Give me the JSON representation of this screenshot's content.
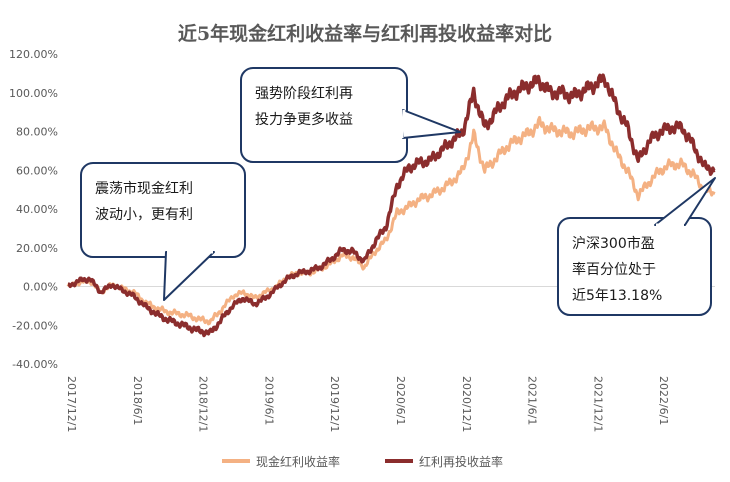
{
  "chart_data": {
    "type": "line",
    "title": "近5年现金红利收益率与红利再投收益率对比",
    "xlabel": "",
    "ylabel": "",
    "ylim": [
      -40,
      120
    ],
    "y_ticks": [
      "120.00%",
      "100.00%",
      "80.00%",
      "60.00%",
      "40.00%",
      "20.00%",
      "0.00%",
      "-20.00%",
      "-40.00%"
    ],
    "x_ticks": [
      "2017/12/1",
      "2018/6/1",
      "2018/12/1",
      "2019/6/1",
      "2019/12/1",
      "2020/6/1",
      "2020/12/1",
      "2021/6/1",
      "2021/12/1",
      "2022/6/1"
    ],
    "grid": false,
    "legend_position": "bottom",
    "x_dates": [
      "2017/12/1",
      "2018/1/1",
      "2018/2/1",
      "2018/3/1",
      "2018/4/1",
      "2018/5/1",
      "2018/6/1",
      "2018/7/1",
      "2018/8/1",
      "2018/9/1",
      "2018/10/1",
      "2018/11/1",
      "2018/12/1",
      "2019/1/1",
      "2019/2/1",
      "2019/3/1",
      "2019/4/1",
      "2019/5/1",
      "2019/6/1",
      "2019/7/1",
      "2019/8/1",
      "2019/9/1",
      "2019/10/1",
      "2019/11/1",
      "2019/12/1",
      "2020/1/1",
      "2020/2/1",
      "2020/3/1",
      "2020/4/1",
      "2020/5/1",
      "2020/6/1",
      "2020/7/1",
      "2020/8/1",
      "2020/9/1",
      "2020/10/1",
      "2020/11/1",
      "2020/12/1",
      "2021/1/1",
      "2021/2/1",
      "2021/3/1",
      "2021/4/1",
      "2021/5/1",
      "2021/6/1",
      "2021/7/1",
      "2021/8/1",
      "2021/9/1",
      "2021/10/1",
      "2021/11/1",
      "2021/12/1",
      "2022/1/1",
      "2022/2/1",
      "2022/3/1",
      "2022/4/1",
      "2022/5/1",
      "2022/6/1",
      "2022/7/1",
      "2022/8/1",
      "2022/9/1",
      "2022/10/1",
      "2022/11/1"
    ],
    "series": [
      {
        "name": "现金红利收益率",
        "color": "#F4B183",
        "values": [
          0,
          2,
          3,
          -3,
          1,
          -1,
          -3,
          -8,
          -11,
          -13,
          -14,
          -15,
          -17,
          -18,
          -12,
          -5,
          -3,
          -6,
          -3,
          0,
          5,
          7,
          7,
          9,
          12,
          16,
          15,
          10,
          18,
          24,
          38,
          41,
          45,
          47,
          50,
          54,
          60,
          78,
          60,
          66,
          72,
          76,
          79,
          84,
          81,
          80,
          79,
          81,
          82,
          82,
          69,
          60,
          47,
          54,
          60,
          63,
          63,
          58,
          50,
          48
        ]
      },
      {
        "name": "红利再投收益率",
        "color": "#8B2D2D",
        "values": [
          0,
          3,
          4,
          -3,
          1,
          -2,
          -5,
          -10,
          -14,
          -17,
          -19,
          -21,
          -23,
          -24,
          -17,
          -10,
          -6,
          -9,
          -6,
          -1,
          4,
          7,
          8,
          10,
          14,
          19,
          18,
          13,
          23,
          31,
          52,
          61,
          64,
          65,
          70,
          75,
          80,
          100,
          82,
          90,
          97,
          101,
          104,
          106,
          100,
          100,
          98,
          101,
          104,
          107,
          93,
          82,
          65,
          75,
          80,
          82,
          82,
          73,
          62,
          60
        ]
      }
    ],
    "annotations": [
      {
        "text_lines": [
          "震荡市现金红利",
          "波动小，更有利"
        ]
      },
      {
        "text_lines": [
          "强势阶段红利再",
          "投力争更多收益"
        ]
      },
      {
        "text_lines": [
          "沪深300市盈",
          "率百分位处于",
          "近5年13.18%"
        ]
      }
    ]
  }
}
